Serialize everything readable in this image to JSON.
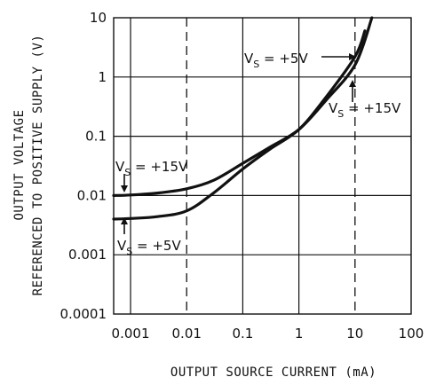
{
  "chart_data": {
    "type": "line",
    "xlabel": "OUTPUT SOURCE CURRENT (mA)",
    "ylabel_line1": "OUTPUT VOLTAGE",
    "ylabel_line2": "REFERENCED TO POSITIVE SUPPLY (V)",
    "x_scale": "log",
    "y_scale": "log",
    "xlim": [
      0.0005,
      100
    ],
    "ylim": [
      0.0001,
      10
    ],
    "x_ticks": [
      "0.001",
      "0.01",
      "0.1",
      "1",
      "10",
      "100"
    ],
    "y_ticks": [
      "0.0001",
      "0.001",
      "0.01",
      "0.1",
      "1",
      "10"
    ],
    "grid": true,
    "series": [
      {
        "name": "VS = +15V",
        "x": [
          0.0005,
          0.001,
          0.003,
          0.01,
          0.03,
          0.1,
          0.3,
          1,
          3,
          10,
          20
        ],
        "y": [
          0.01,
          0.0102,
          0.011,
          0.013,
          0.018,
          0.035,
          0.065,
          0.13,
          0.4,
          1.6,
          10
        ]
      },
      {
        "name": "VS = +5V",
        "x": [
          0.0005,
          0.001,
          0.003,
          0.01,
          0.03,
          0.1,
          0.3,
          1,
          3,
          10,
          15
        ],
        "y": [
          0.004,
          0.0041,
          0.0044,
          0.0055,
          0.011,
          0.028,
          0.06,
          0.13,
          0.45,
          2.2,
          6
        ]
      }
    ],
    "annotations": [
      {
        "main": "V",
        "sub": "S",
        "rest": " = +15V"
      },
      {
        "main": "V",
        "sub": "S",
        "rest": " = +5V"
      },
      {
        "main": "V",
        "sub": "S",
        "rest": " = +5V"
      },
      {
        "main": "V",
        "sub": "S",
        "rest": " = +15V"
      }
    ]
  }
}
